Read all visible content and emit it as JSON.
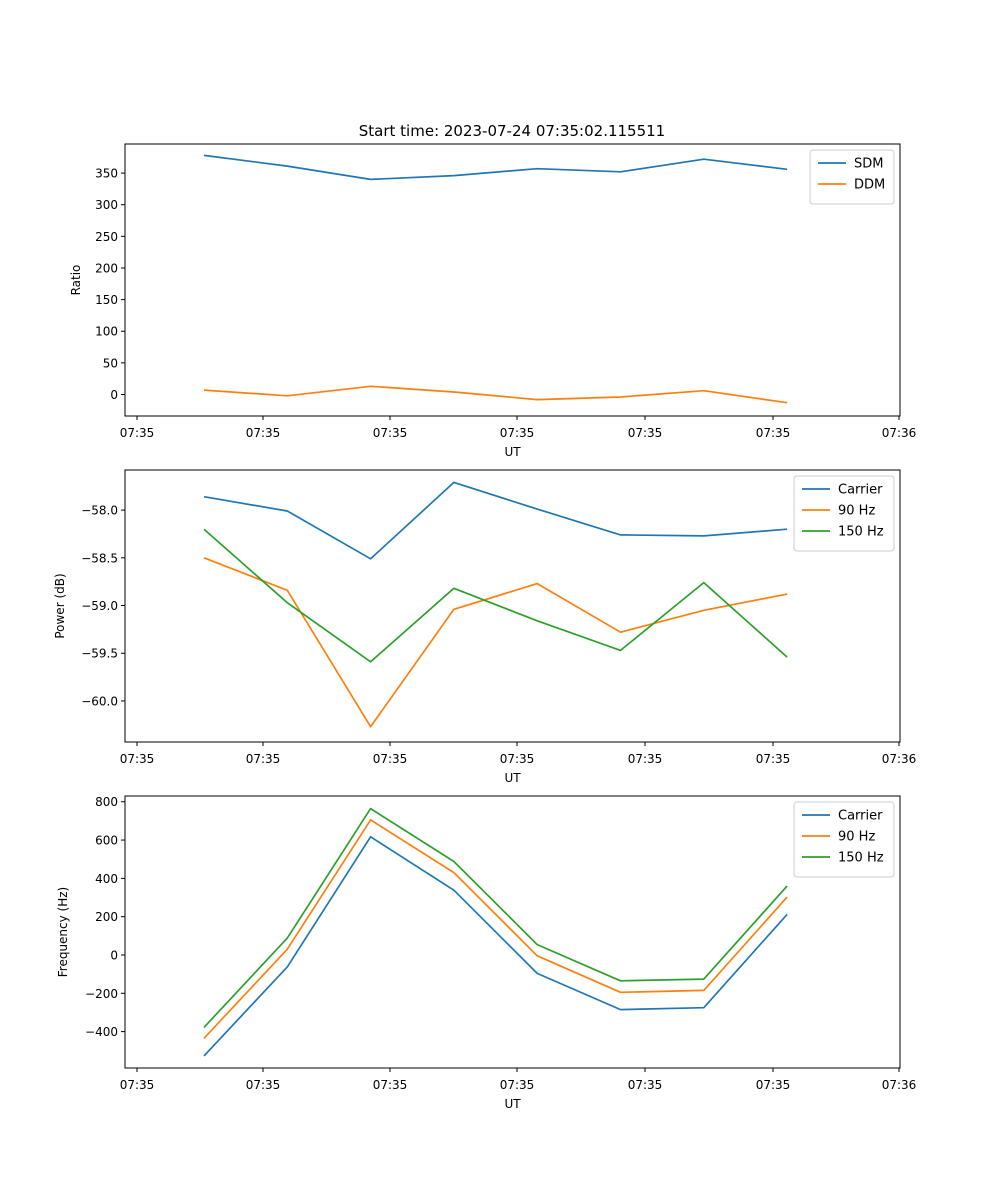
{
  "figure": {
    "title": "Start time: 2023-07-24 07:35:02.115511"
  },
  "chart_data": [
    {
      "type": "line",
      "xlabel": "UT",
      "ylabel": "Ratio",
      "xticks": [
        "07:35",
        "07:35",
        "07:35",
        "07:35",
        "07:35",
        "07:35",
        "07:35"
      ],
      "xticks_last": "07:36",
      "yticks": [
        0,
        50,
        100,
        150,
        200,
        250,
        300,
        350
      ],
      "ylim": [
        -34,
        396
      ],
      "x": [
        1,
        2,
        3,
        4,
        5,
        6,
        7,
        8
      ],
      "legend_position": "top-right",
      "series": [
        {
          "name": "SDM",
          "color": "#1f77b4",
          "values": [
            378,
            361,
            340,
            346,
            357,
            352,
            372,
            356
          ]
        },
        {
          "name": "DDM",
          "color": "#ff7f0e",
          "values": [
            7,
            -2,
            13,
            4,
            -8,
            -4,
            6,
            -13
          ]
        }
      ]
    },
    {
      "type": "line",
      "xlabel": "UT",
      "ylabel": "Power (dB)",
      "xticks": [
        "07:35",
        "07:35",
        "07:35",
        "07:35",
        "07:35",
        "07:35",
        "07:35"
      ],
      "xticks_last": "07:36",
      "yticks": [
        -60.0,
        -59.5,
        -59.0,
        -58.5,
        -58.0
      ],
      "ylim": [
        -60.43,
        -57.58
      ],
      "x": [
        1,
        2,
        3,
        4,
        5,
        6,
        7,
        8
      ],
      "legend_position": "top-right",
      "series": [
        {
          "name": "Carrier",
          "color": "#1f77b4",
          "values": [
            -57.86,
            -58.01,
            -58.51,
            -57.71,
            -57.99,
            -58.26,
            -58.27,
            -58.2
          ]
        },
        {
          "name": "90 Hz",
          "color": "#ff7f0e",
          "values": [
            -58.5,
            -58.84,
            -60.27,
            -59.04,
            -58.77,
            -59.28,
            -59.05,
            -58.88
          ]
        },
        {
          "name": "150 Hz",
          "color": "#2ca02c",
          "values": [
            -58.2,
            -58.97,
            -59.59,
            -58.82,
            -59.16,
            -59.47,
            -58.76,
            -59.54
          ]
        }
      ]
    },
    {
      "type": "line",
      "xlabel": "UT",
      "ylabel": "Frequency (Hz)",
      "xticks": [
        "07:35",
        "07:35",
        "07:35",
        "07:35",
        "07:35",
        "07:35",
        "07:35"
      ],
      "xticks_last": "07:36",
      "yticks": [
        -400,
        -200,
        0,
        200,
        400,
        600,
        800
      ],
      "ylim": [
        -590,
        830
      ],
      "x": [
        1,
        2,
        3,
        4,
        5,
        6,
        7,
        8
      ],
      "legend_position": "top-right",
      "series": [
        {
          "name": "Carrier",
          "color": "#1f77b4",
          "values": [
            -527,
            -62,
            617,
            338,
            -96,
            -285,
            -275,
            212
          ]
        },
        {
          "name": "90 Hz",
          "color": "#ff7f0e",
          "values": [
            -435,
            30,
            705,
            430,
            -4,
            -195,
            -185,
            302
          ]
        },
        {
          "name": "150 Hz",
          "color": "#2ca02c",
          "values": [
            -378,
            88,
            764,
            488,
            54,
            -135,
            -126,
            360
          ]
        }
      ]
    }
  ]
}
